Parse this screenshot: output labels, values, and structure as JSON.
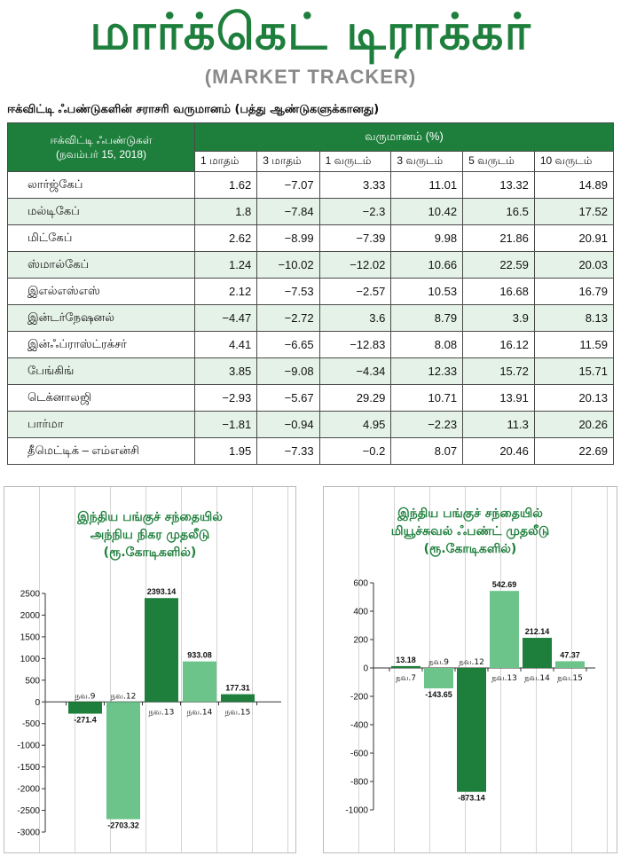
{
  "header": {
    "title": "மார்க்கெட் டிராக்கர்",
    "subtitle": "(MARKET TRACKER)"
  },
  "table": {
    "heading": "ஈக்விட்டி ஃபண்டுகளின் சராசரி வருமானம் (பத்து ஆண்டுகளுக்கானது)",
    "fund_header_line1": "ஈக்விட்டி ஃபண்டுகள்",
    "fund_header_line2": "(நவம்பர் 15, 2018)",
    "returns_header": "வருமானம் (%)",
    "periods": [
      "1 மாதம்",
      "3 மாதம்",
      "1 வருடம்",
      "3 வருடம்",
      "5 வருடம்",
      "10 வருடம்"
    ],
    "rows": [
      {
        "name": "லார்ஜ்கேப்",
        "values": [
          "1.62",
          "−7.07",
          "3.33",
          "11.01",
          "13.32",
          "14.89"
        ]
      },
      {
        "name": "மல்டிகேப்",
        "values": [
          "1.8",
          "−7.84",
          "−2.3",
          "10.42",
          "16.5",
          "17.52"
        ]
      },
      {
        "name": "மிட்கேப்",
        "values": [
          "2.62",
          "−8.99",
          "−7.39",
          "9.98",
          "21.86",
          "20.91"
        ]
      },
      {
        "name": "ஸ்மால்கேப்",
        "values": [
          "1.24",
          "−10.02",
          "−12.02",
          "10.66",
          "22.59",
          "20.03"
        ]
      },
      {
        "name": "இஎல்எஸ்எஸ்",
        "values": [
          "2.12",
          "−7.53",
          "−2.57",
          "10.53",
          "16.68",
          "16.79"
        ]
      },
      {
        "name": "இன்டர்நேஷனல்",
        "values": [
          "−4.47",
          "−2.72",
          "3.6",
          "8.79",
          "3.9",
          "8.13"
        ]
      },
      {
        "name": "இன்ஃப்ராஸ்ட்ரக்சர்",
        "values": [
          "4.41",
          "−6.65",
          "−12.83",
          "8.08",
          "16.12",
          "11.59"
        ]
      },
      {
        "name": "பேங்கிங்",
        "values": [
          "3.85",
          "−9.08",
          "−4.34",
          "12.33",
          "15.72",
          "15.71"
        ]
      },
      {
        "name": "டெக்னாலஜி",
        "values": [
          "−2.93",
          "−5.67",
          "29.29",
          "10.71",
          "13.91",
          "20.13"
        ]
      },
      {
        "name": "பார்மா",
        "values": [
          "−1.81",
          "−0.94",
          "4.95",
          "−2.23",
          "11.3",
          "20.26"
        ]
      },
      {
        "name": "தீமெட்டிக் – எம்என்சி",
        "values": [
          "1.95",
          "−7.33",
          "−0.2",
          "8.07",
          "20.46",
          "22.69"
        ]
      }
    ]
  },
  "colors": {
    "brand_green": "#1e7f3c",
    "bar_dark": "#1e7f3c",
    "bar_light": "#6cc48a",
    "row_stripe": "#e5f2e8",
    "subtitle_grey": "#8a8a8a"
  },
  "chart_data": [
    {
      "type": "bar",
      "title_lines": [
        "இந்திய பங்குச் சந்தையில்",
        "அந்நிய நிகர முதலீடு",
        "(ரூ.கோடிகளில்)"
      ],
      "categories": [
        "நவ.9",
        "நவ.12",
        "நவ.13",
        "நவ.14",
        "நவ.15"
      ],
      "values": [
        -271.4,
        -2703.32,
        2393.14,
        933.08,
        177.31
      ],
      "value_labels": [
        "-271.4",
        "-2703.32",
        "2393.14",
        "933.08",
        "177.31"
      ],
      "bar_colors": [
        "#1e7f3c",
        "#6cc48a",
        "#1e7f3c",
        "#6cc48a",
        "#1e7f3c"
      ],
      "ylim": [
        -3000,
        2500
      ],
      "yticks": [
        2500,
        2000,
        1500,
        1000,
        500,
        0,
        -500,
        -1000,
        -1500,
        -2000,
        -2500,
        -3000
      ],
      "ytick_labels": [
        "2500",
        "2000",
        "1500",
        "1000",
        "500",
        "0",
        "-500",
        "-1000",
        "-1500",
        "-2000",
        "-2500",
        "-3000"
      ],
      "grid": "vertical"
    },
    {
      "type": "bar",
      "title_lines": [
        "இந்திய பங்குச் சந்தையில்",
        "மியூச்சுவல் ஃபண்ட் முதலீடு",
        "(ரூ.கோடிகளில்)"
      ],
      "categories": [
        "நவ.7",
        "நவ.9",
        "நவ.12",
        "நவ.13",
        "நவ.14",
        "நவ.15"
      ],
      "values": [
        13.18,
        -143.65,
        -873.14,
        542.69,
        212.14,
        47.37
      ],
      "value_labels": [
        "13.18",
        "-143.65",
        "-873.14",
        "542.69",
        "212.14",
        "47.37"
      ],
      "bar_colors": [
        "#1e7f3c",
        "#6cc48a",
        "#1e7f3c",
        "#6cc48a",
        "#1e7f3c",
        "#6cc48a"
      ],
      "ylim": [
        -1000,
        600
      ],
      "yticks": [
        600,
        400,
        200,
        0,
        -200,
        -400,
        -600,
        -800,
        -1000
      ],
      "ytick_labels": [
        "600",
        "400",
        "200",
        "0",
        "-200",
        "-400",
        "-600",
        "-800",
        "-1000"
      ],
      "grid": "vertical"
    }
  ]
}
